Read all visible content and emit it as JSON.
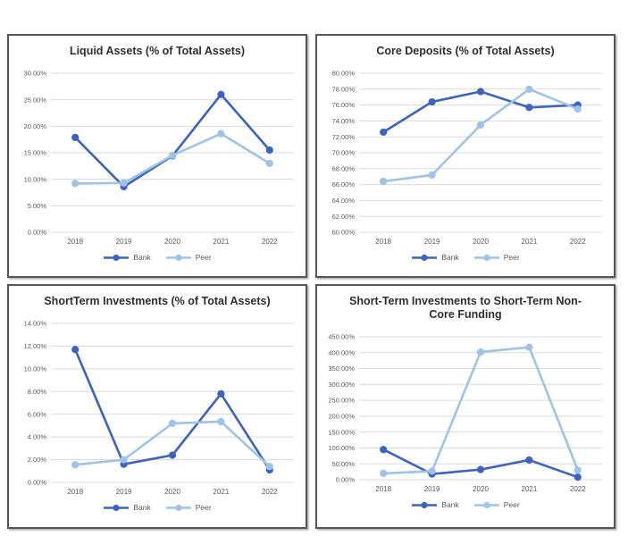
{
  "colors": {
    "bank": "#3C63C0",
    "peer": "#9DC3E6",
    "gridline": "#D9D9D9",
    "axis_text": "#595959",
    "title_text": "#2E2E2E",
    "panel_border": "#565656",
    "background": "#FFFFFF"
  },
  "legend": {
    "bank_label": "Bank",
    "peer_label": "Peer"
  },
  "chart_data": [
    {
      "type": "line",
      "title": "Liquid Assets (% of Total Assets)",
      "categories": [
        "2018",
        "2019",
        "2020",
        "2021",
        "2022"
      ],
      "series": [
        {
          "name": "Bank",
          "color": "#3C63C0",
          "values": [
            17.9,
            8.6,
            14.4,
            26.0,
            15.5
          ]
        },
        {
          "name": "Peer",
          "color": "#9DC3E6",
          "values": [
            9.2,
            9.3,
            14.5,
            18.6,
            13.0
          ]
        }
      ],
      "xlabel": "",
      "ylabel": "",
      "ylim": [
        0,
        30
      ],
      "ytick_step": 5,
      "ytick_decimals": 2,
      "ytick_suffix": "%",
      "grid": true,
      "legend_position": "bottom"
    },
    {
      "type": "line",
      "title": "Core Deposits (% of Total Assets)",
      "categories": [
        "2018",
        "2019",
        "2020",
        "2021",
        "2022"
      ],
      "series": [
        {
          "name": "Bank",
          "color": "#3C63C0",
          "values": [
            72.6,
            76.4,
            77.7,
            75.7,
            76.0
          ]
        },
        {
          "name": "Peer",
          "color": "#9DC3E6",
          "values": [
            66.4,
            67.2,
            73.5,
            78.0,
            75.5
          ]
        }
      ],
      "xlabel": "",
      "ylabel": "",
      "ylim": [
        60,
        80
      ],
      "ytick_step": 2,
      "ytick_decimals": 2,
      "ytick_suffix": "%",
      "grid": true,
      "legend_position": "bottom"
    },
    {
      "type": "line",
      "title": "ShortTerm Investments (% of Total Assets)",
      "categories": [
        "2018",
        "2019",
        "2020",
        "2021",
        "2022"
      ],
      "series": [
        {
          "name": "Bank",
          "color": "#3C63C0",
          "values": [
            11.7,
            1.6,
            2.4,
            7.8,
            1.1
          ]
        },
        {
          "name": "Peer",
          "color": "#9DC3E6",
          "values": [
            1.55,
            2.0,
            5.2,
            5.35,
            1.4
          ]
        }
      ],
      "xlabel": "",
      "ylabel": "",
      "ylim": [
        0,
        14
      ],
      "ytick_step": 2,
      "ytick_decimals": 2,
      "ytick_suffix": "%",
      "grid": true,
      "legend_position": "bottom"
    },
    {
      "type": "line",
      "title": "Short-Term Investments to Short-Term Non-Core Funding",
      "categories": [
        "2018",
        "2019",
        "2020",
        "2021",
        "2022"
      ],
      "series": [
        {
          "name": "Bank",
          "color": "#3C63C0",
          "values": [
            95,
            18,
            32,
            62,
            8
          ]
        },
        {
          "name": "Peer",
          "color": "#9DC3E6",
          "values": [
            20,
            27,
            402,
            417,
            30
          ]
        }
      ],
      "xlabel": "",
      "ylabel": "",
      "ylim": [
        0,
        450
      ],
      "ytick_step": 50,
      "ytick_decimals": 2,
      "ytick_suffix": "%",
      "grid": true,
      "legend_position": "bottom"
    }
  ]
}
